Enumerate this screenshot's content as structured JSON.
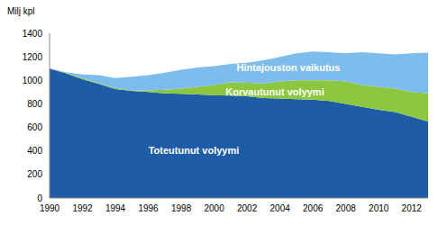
{
  "chart_data": {
    "type": "area",
    "y_label": "Milj kpl",
    "stacked": true,
    "grid": false,
    "x": [
      1990,
      1991,
      1992,
      1993,
      1994,
      1995,
      1996,
      1997,
      1998,
      1999,
      2000,
      2001,
      2002,
      2003,
      2004,
      2005,
      2006,
      2007,
      2008,
      2009,
      2010,
      2011,
      2012,
      2013
    ],
    "xlim": [
      1990,
      2013
    ],
    "xticks": [
      1990,
      1992,
      1994,
      1996,
      1998,
      2000,
      2002,
      2004,
      2006,
      2008,
      2010,
      2012
    ],
    "ylim": [
      0,
      1400
    ],
    "yticks": [
      0,
      200,
      400,
      600,
      800,
      1000,
      1200,
      1400
    ],
    "series": [
      {
        "name": "Toteutunut volyymi",
        "color": "#1f5ca8",
        "values": [
          1100,
          1060,
          1010,
          970,
          925,
          910,
          900,
          890,
          885,
          880,
          875,
          870,
          865,
          850,
          845,
          840,
          835,
          825,
          800,
          775,
          750,
          730,
          690,
          650
        ]
      },
      {
        "name": "Korvautunut volyymi",
        "color": "#8dc63f",
        "values": [
          0,
          5,
          10,
          5,
          10,
          5,
          15,
          30,
          45,
          65,
          85,
          115,
          115,
          125,
          145,
          160,
          165,
          175,
          190,
          185,
          195,
          200,
          210,
          240
        ]
      },
      {
        "name": "Hintajouston vaikutus",
        "color": "#7dbdee",
        "values": [
          0,
          5,
          30,
          70,
          85,
          115,
          130,
          145,
          160,
          165,
          160,
          155,
          170,
          195,
          210,
          230,
          245,
          240,
          240,
          280,
          285,
          290,
          330,
          345
        ]
      }
    ]
  }
}
